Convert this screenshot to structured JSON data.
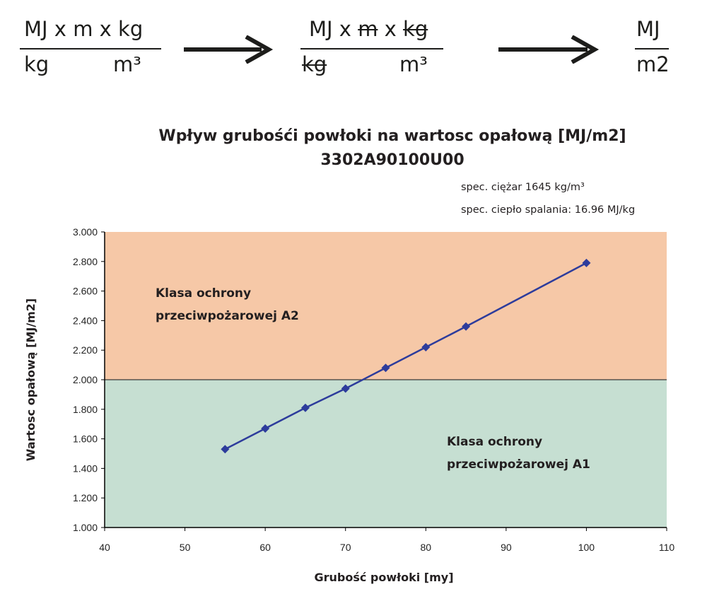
{
  "formula": {
    "step1": {
      "num": [
        "MJ",
        " x ",
        "m",
        " x ",
        "kg"
      ],
      "den_left": "kg",
      "den_right": "m³"
    },
    "step2": {
      "num": [
        "MJ",
        " x ",
        "m",
        " x ",
        "kg"
      ],
      "den_left": "kg",
      "den_right": "m³"
    },
    "step3": {
      "num": "MJ",
      "den": "m2"
    }
  },
  "notes": {
    "specific_weight": "spec. ciężar 1645 kg/m³",
    "heat_of_combustion": "spec. ciepło spalania: 16.96 MJ/kg"
  },
  "chart_data": {
    "type": "line",
    "title": "Wpływ grubośći powłoki na wartosc opałową [MJ/m2]",
    "subtitle": "3302A90100U00",
    "xlabel": "Grubość powłoki [my]",
    "ylabel": "Wartosc opałową [MJ/m2]",
    "xlim": [
      40,
      110
    ],
    "ylim": [
      1.0,
      3.0
    ],
    "x_ticks": [
      "40",
      "50",
      "60",
      "70",
      "80",
      "90",
      "100",
      "110"
    ],
    "y_ticks": [
      "1.000",
      "1.200",
      "1.400",
      "1.600",
      "1.800",
      "2.000",
      "2.200",
      "2.400",
      "2.600",
      "2.800",
      "3.000"
    ],
    "x": [
      55,
      60,
      65,
      70,
      75,
      80,
      85,
      100
    ],
    "y": [
      1.53,
      1.67,
      1.81,
      1.94,
      2.08,
      2.22,
      2.36,
      2.79
    ],
    "color": "#2d3c9c",
    "regions": [
      {
        "label_line1": "Klasa ochrony",
        "label_line2": "przeciwpożarowej A2",
        "y_from": 2.0,
        "y_to": 3.0,
        "color": "#f6c8a7"
      },
      {
        "label_line1": "Klasa ochrony",
        "label_line2": "przeciwpożarowej A1",
        "y_from": 1.0,
        "y_to": 2.0,
        "color": "#c6dfd2"
      }
    ]
  }
}
